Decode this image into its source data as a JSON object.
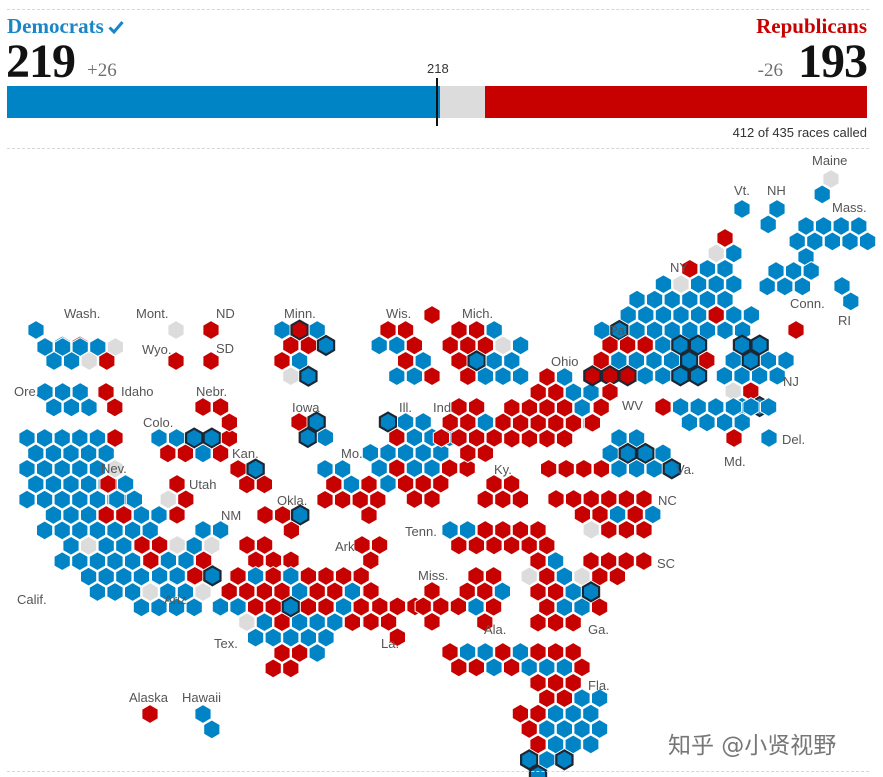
{
  "header": {
    "dem": {
      "name": "Democrats",
      "seats": "219",
      "change": "+26",
      "check_icon": "checkmark-icon"
    },
    "rep": {
      "name": "Republicans",
      "seats": "193",
      "change": "-26"
    },
    "majority_label": "218",
    "races_called": "412 of 435 races called"
  },
  "seat_bar": {
    "total": 435,
    "dem": 219,
    "rep": 193,
    "uncalled": 23,
    "majority": 218
  },
  "colors": {
    "dem": "#0084c6",
    "rep": "#c70000",
    "uncalled": "#dcdcdc",
    "flipped_outline": "#1c2733",
    "ink": "#121212"
  },
  "state_labels": [
    "Maine",
    "Vt.",
    "NH",
    "Mass.",
    "NY",
    "Conn.",
    "RI",
    "Wash.",
    "Mont.",
    "ND",
    "Minn.",
    "Wis.",
    "Mich.",
    "Wyo.",
    "SD",
    "Pa.",
    "Ohio",
    "NJ",
    "Ore.",
    "Idaho",
    "Nebr.",
    "Iowa",
    "WV",
    "Colo.",
    "Ill.",
    "Ind.",
    "Del.",
    "Md.",
    "Kan.",
    "Mo.",
    "Va.",
    "Nev.",
    "Utah",
    "Ky.",
    "NC",
    "Okla.",
    "NM",
    "Tenn.",
    "Ark.",
    "SC",
    "Calif.",
    "Ariz.",
    "Miss.",
    "Tex.",
    "La.",
    "Ala.",
    "Ga.",
    "Fla.",
    "Alaska",
    "Hawaii"
  ],
  "watermark": "知乎 @小贤视野"
}
